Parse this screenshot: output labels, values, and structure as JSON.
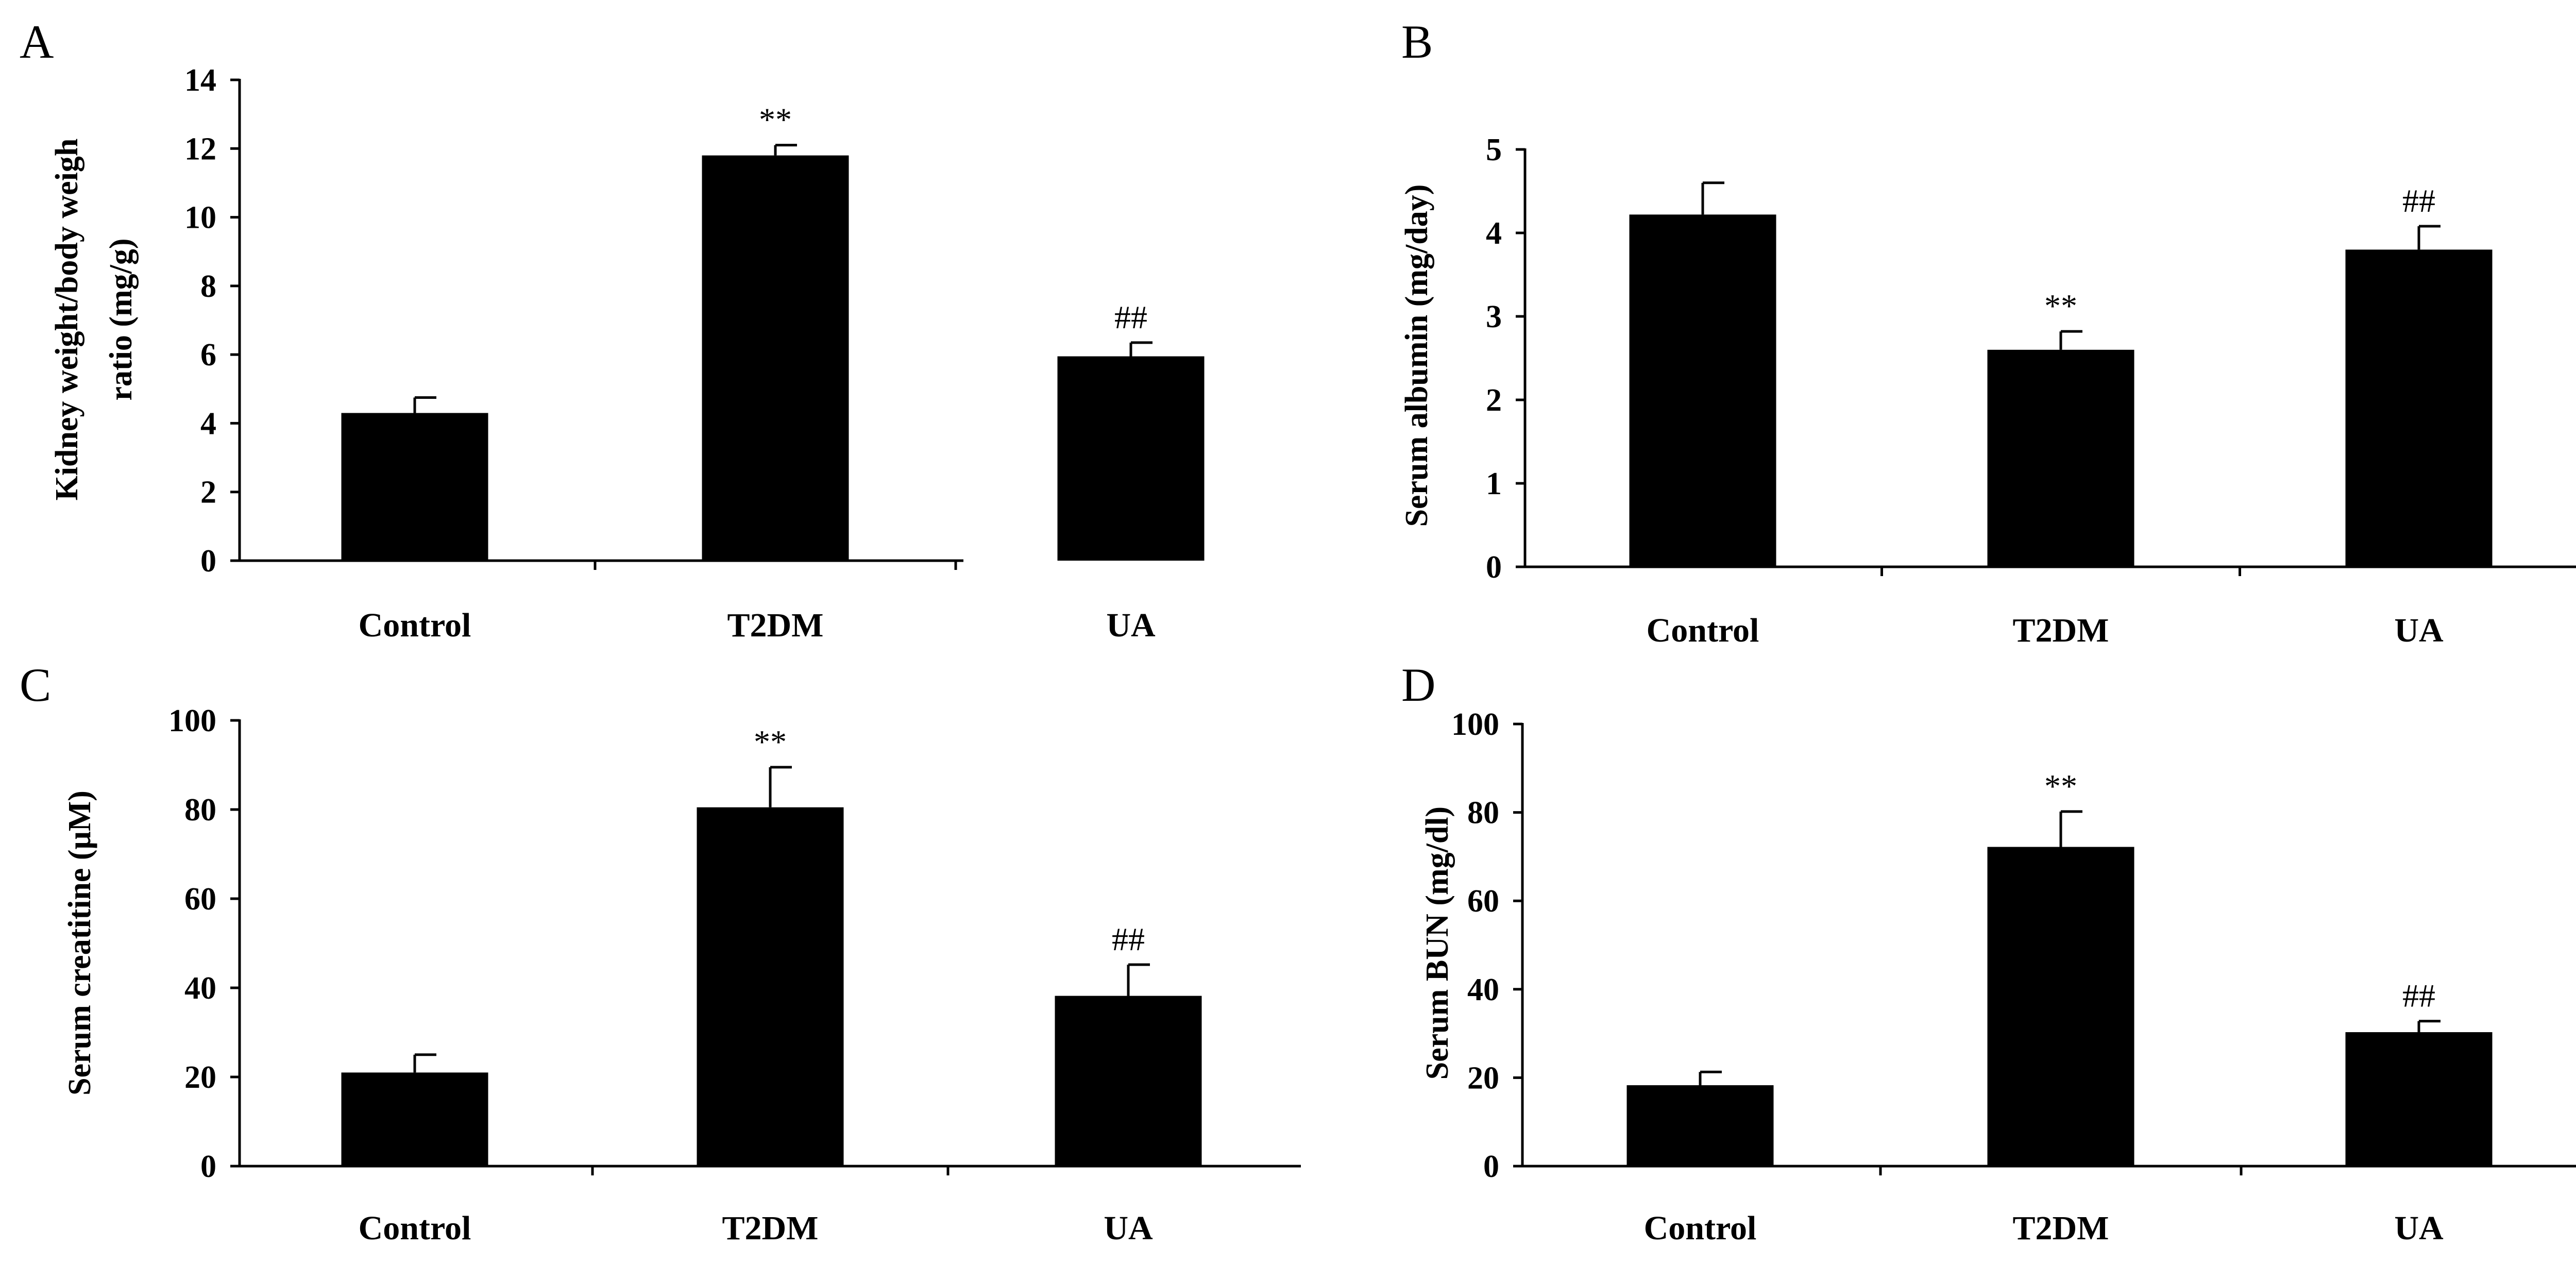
{
  "chart_data": [
    {
      "panel": "A",
      "type": "bar",
      "categories": [
        "Control",
        "T2DM",
        "UA"
      ],
      "values": [
        4.3,
        11.8,
        5.95
      ],
      "errors": [
        0.45,
        0.3,
        0.4
      ],
      "annotations": [
        "",
        "**",
        "##"
      ],
      "ylabel_lines": [
        "Kidney weight/body weigh",
        "ratio (mg/g)"
      ],
      "ylim": [
        0,
        14
      ],
      "yticks": [
        0,
        2,
        4,
        6,
        8,
        10,
        12,
        14
      ],
      "xlabel": "",
      "grid": false
    },
    {
      "panel": "B",
      "type": "bar",
      "categories": [
        "Control",
        "T2DM",
        "UA"
      ],
      "values": [
        4.22,
        2.6,
        3.8
      ],
      "errors": [
        0.38,
        0.22,
        0.28
      ],
      "annotations": [
        "",
        "**",
        "##"
      ],
      "ylabel_lines": [
        "Serum  albumin (mg/day)"
      ],
      "ylim": [
        0,
        5
      ],
      "yticks": [
        0,
        1,
        2,
        3,
        4,
        5
      ],
      "xlabel": "",
      "grid": false
    },
    {
      "panel": "C",
      "type": "bar",
      "categories": [
        "Control",
        "T2DM",
        "UA"
      ],
      "values": [
        21,
        80.5,
        38.2
      ],
      "errors": [
        4,
        9,
        7
      ],
      "annotations": [
        "",
        "**",
        "##"
      ],
      "ylabel_lines": [
        "Serum creatitine (μM)"
      ],
      "ylim": [
        0,
        100
      ],
      "yticks": [
        0,
        20,
        40,
        60,
        80,
        100
      ],
      "xlabel": "",
      "grid": false
    },
    {
      "panel": "D",
      "type": "bar",
      "categories": [
        "Control",
        "T2DM",
        "UA"
      ],
      "values": [
        18.3,
        72.2,
        30.3
      ],
      "errors": [
        3,
        8,
        2.5
      ],
      "annotations": [
        "",
        "**",
        "##"
      ],
      "ylabel_lines": [
        "Serum BUN (mg/dl)"
      ],
      "ylim": [
        0,
        100
      ],
      "yticks": [
        0,
        20,
        40,
        60,
        80,
        100
      ],
      "xlabel": "",
      "grid": false
    }
  ]
}
